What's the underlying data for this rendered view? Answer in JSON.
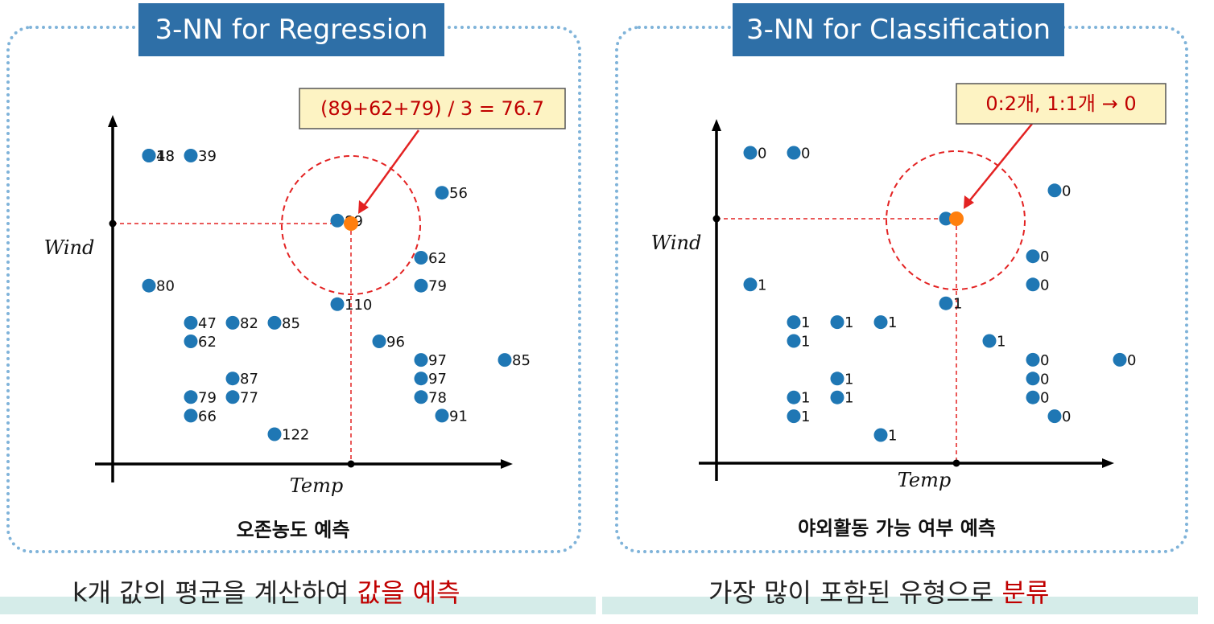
{
  "left": {
    "title": "3-NN for Regression",
    "calc": "(89+62+79) / 3 = 76.7",
    "ylabel": "Wind",
    "xlabel": "Temp",
    "caption": "오존농도 예측",
    "subtitle_pre": "k개 값의 평균을 계산하여 ",
    "subtitle_hl": "값을 예측"
  },
  "right": {
    "title": "3-NN for Classification",
    "calc": "0:2개, 1:1개 → 0",
    "ylabel": "Wind",
    "xlabel": "Temp",
    "caption": "야외활동 가능 여부 예측",
    "subtitle_pre": "가장 많이 포함된 유형으로 ",
    "subtitle_hl": "분류"
  },
  "colors": {
    "point": "#1f77b4",
    "query": "#ff7f0e",
    "neighborhood": "#e32222",
    "banner": "#2e6fa7",
    "border": "#7fb3d9",
    "highlight": "#c00000"
  },
  "chart_data": [
    {
      "type": "scatter",
      "title": "3-NN for Regression",
      "xlabel": "Temp",
      "ylabel": "Wind",
      "query_point": {
        "temp": 5.5,
        "wind": 10.5,
        "prediction": 76.7
      },
      "neighbors": [
        "89",
        "62",
        "79"
      ],
      "points": [
        {
          "x": 0,
          "y": 15,
          "label": "48"
        },
        {
          "x": 0,
          "y": 15,
          "label": "18"
        },
        {
          "x": 1,
          "y": 15,
          "label": "39"
        },
        {
          "x": 7,
          "y": 13,
          "label": "56"
        },
        {
          "x": 4.5,
          "y": 11.5,
          "label": "89"
        },
        {
          "x": 6.5,
          "y": 9.5,
          "label": "62"
        },
        {
          "x": 0,
          "y": 8,
          "label": "80"
        },
        {
          "x": 6.5,
          "y": 8,
          "label": "79"
        },
        {
          "x": 4.5,
          "y": 7,
          "label": "110"
        },
        {
          "x": 1,
          "y": 6,
          "label": "47"
        },
        {
          "x": 2,
          "y": 6,
          "label": "82"
        },
        {
          "x": 3,
          "y": 6,
          "label": "85"
        },
        {
          "x": 1,
          "y": 5,
          "label": "62"
        },
        {
          "x": 5.5,
          "y": 5,
          "label": "96"
        },
        {
          "x": 6.5,
          "y": 4,
          "label": "97"
        },
        {
          "x": 8.5,
          "y": 4,
          "label": "85"
        },
        {
          "x": 2,
          "y": 3,
          "label": "87"
        },
        {
          "x": 6.5,
          "y": 3,
          "label": "97"
        },
        {
          "x": 1,
          "y": 2,
          "label": "79"
        },
        {
          "x": 2,
          "y": 2,
          "label": "77"
        },
        {
          "x": 6.5,
          "y": 2,
          "label": "78"
        },
        {
          "x": 1,
          "y": 1,
          "label": "66"
        },
        {
          "x": 7,
          "y": 1,
          "label": "91"
        },
        {
          "x": 3,
          "y": 0,
          "label": "122"
        }
      ]
    },
    {
      "type": "scatter",
      "title": "3-NN for Classification",
      "xlabel": "Temp",
      "ylabel": "Wind",
      "query_point": {
        "temp": 5.5,
        "wind": 10.5,
        "prediction": 0
      },
      "neighbors": [
        "1",
        "0",
        "0"
      ],
      "points": [
        {
          "x": 0,
          "y": 15,
          "label": "0"
        },
        {
          "x": 1,
          "y": 15,
          "label": "0"
        },
        {
          "x": 7,
          "y": 13,
          "label": "0"
        },
        {
          "x": 4.5,
          "y": 11.5,
          "label": "1"
        },
        {
          "x": 6.5,
          "y": 9.5,
          "label": "0"
        },
        {
          "x": 0,
          "y": 8,
          "label": "1"
        },
        {
          "x": 6.5,
          "y": 8,
          "label": "0"
        },
        {
          "x": 4.5,
          "y": 7,
          "label": "1"
        },
        {
          "x": 1,
          "y": 6,
          "label": "1"
        },
        {
          "x": 2,
          "y": 6,
          "label": "1"
        },
        {
          "x": 3,
          "y": 6,
          "label": "1"
        },
        {
          "x": 1,
          "y": 5,
          "label": "1"
        },
        {
          "x": 5.5,
          "y": 5,
          "label": "1"
        },
        {
          "x": 6.5,
          "y": 4,
          "label": "0"
        },
        {
          "x": 8.5,
          "y": 4,
          "label": "0"
        },
        {
          "x": 2,
          "y": 3,
          "label": "1"
        },
        {
          "x": 6.5,
          "y": 3,
          "label": "0"
        },
        {
          "x": 1,
          "y": 2,
          "label": "1"
        },
        {
          "x": 2,
          "y": 2,
          "label": "1"
        },
        {
          "x": 6.5,
          "y": 2,
          "label": "0"
        },
        {
          "x": 1,
          "y": 1,
          "label": "1"
        },
        {
          "x": 7,
          "y": 1,
          "label": "0"
        },
        {
          "x": 3,
          "y": 0,
          "label": "1"
        }
      ]
    }
  ]
}
